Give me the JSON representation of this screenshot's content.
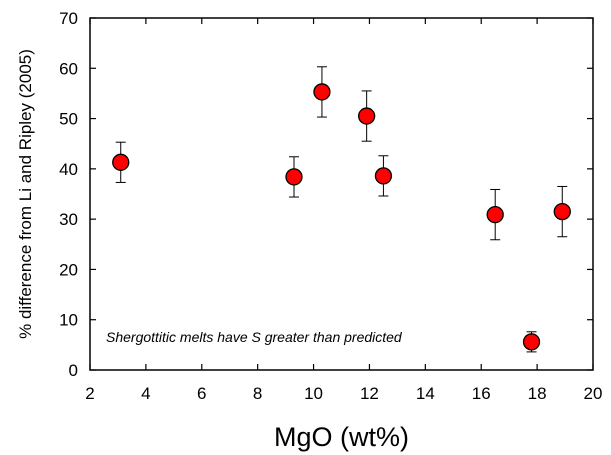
{
  "chart_data": {
    "type": "scatter",
    "title": "",
    "xlabel": "MgO (wt%)",
    "ylabel": "% difference from Li and Ripley (2005)",
    "xlim": [
      2,
      20
    ],
    "ylim": [
      0,
      70
    ],
    "xticks": [
      2,
      4,
      6,
      8,
      10,
      12,
      14,
      16,
      18,
      20
    ],
    "yticks": [
      0,
      10,
      20,
      30,
      40,
      50,
      60,
      70
    ],
    "grid": false,
    "legend": "none",
    "annotation": "Shergottitic melts have S greater than predicted",
    "marker_color": "#ff0000",
    "series": [
      {
        "x": [
          3.1,
          9.3,
          10.3,
          11.9,
          12.5,
          16.5,
          17.8,
          18.9
        ],
        "y": [
          41.3,
          38.4,
          55.3,
          50.5,
          38.6,
          30.9,
          5.6,
          31.5
        ],
        "error": [
          4.0,
          4.0,
          5.0,
          5.0,
          4.0,
          5.0,
          2.0,
          5.0
        ]
      }
    ]
  }
}
